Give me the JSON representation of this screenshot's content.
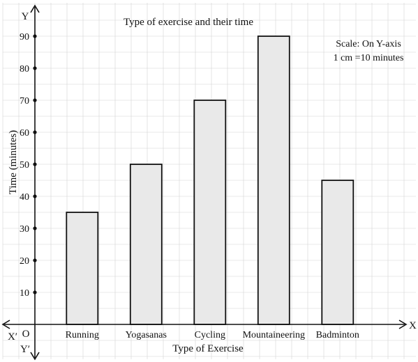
{
  "chart_data": {
    "type": "bar",
    "title": "Type of exercise and their time",
    "xlabel": "Type of Exercise",
    "ylabel": "Time (minutes)",
    "categories": [
      "Running",
      "Yogasanas",
      "Cycling",
      "Mountaineering",
      "Badminton"
    ],
    "values": [
      35,
      50,
      70,
      90,
      45
    ],
    "ylim": [
      0,
      90
    ],
    "yticks": [
      "10",
      "20",
      "30",
      "40",
      "50",
      "60",
      "70",
      "80",
      "90"
    ],
    "grid": true,
    "scale_note": [
      "Scale: On Y-axis",
      "1 cm =10 minutes"
    ],
    "axis_letters": {
      "x": "X",
      "x_neg": "X′",
      "y": "Y",
      "y_neg": "Y′",
      "origin": "O"
    }
  }
}
